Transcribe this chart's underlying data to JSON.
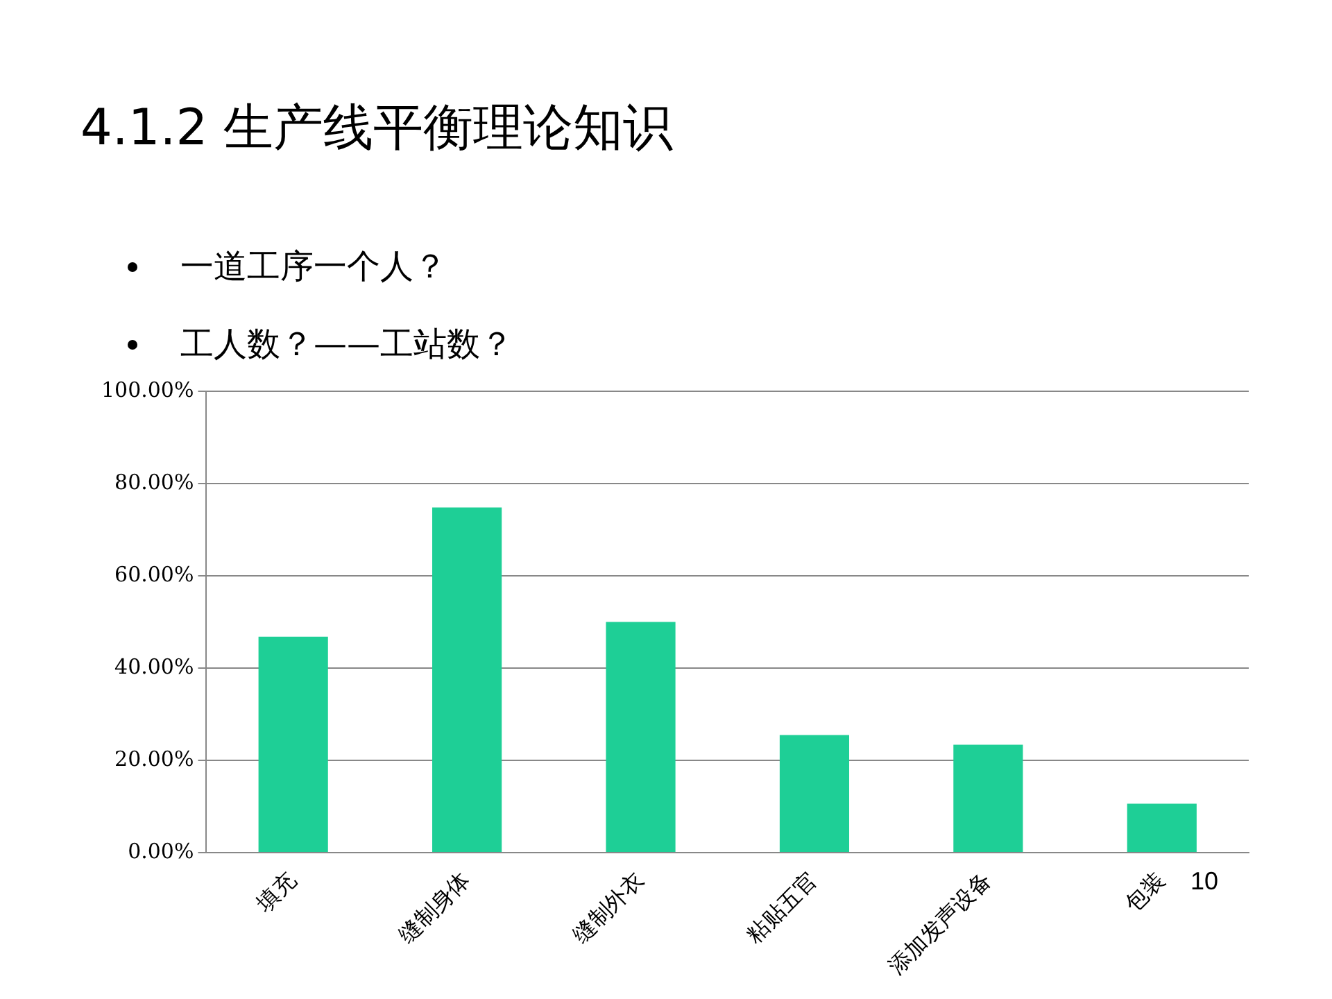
{
  "chart_data": {
    "type": "bar",
    "title": "4.1.2 生产线平衡理论知识",
    "annotations": [
      "一道工序一个人？",
      "工人数？——工站数？",
      "10"
    ],
    "categories": [
      "填充",
      "缝制身体",
      "缝制外衣",
      "粘贴五官",
      "添加发声设备",
      "包装"
    ],
    "values": [
      46.8,
      74.8,
      50,
      25.5,
      23.4,
      10.6
    ],
    "color": "#1ecf96",
    "ylim": [
      0,
      100
    ],
    "yticks": [
      {
        "value": 0,
        "label": "0.00%"
      },
      {
        "value": 20,
        "label": "20.00%"
      },
      {
        "value": 40,
        "label": "40.00%"
      },
      {
        "value": 60,
        "label": "60.00%"
      },
      {
        "value": 80,
        "label": "80.00%"
      },
      {
        "value": 100,
        "label": "100.00%"
      }
    ],
    "grid": "y",
    "legend": false
  }
}
